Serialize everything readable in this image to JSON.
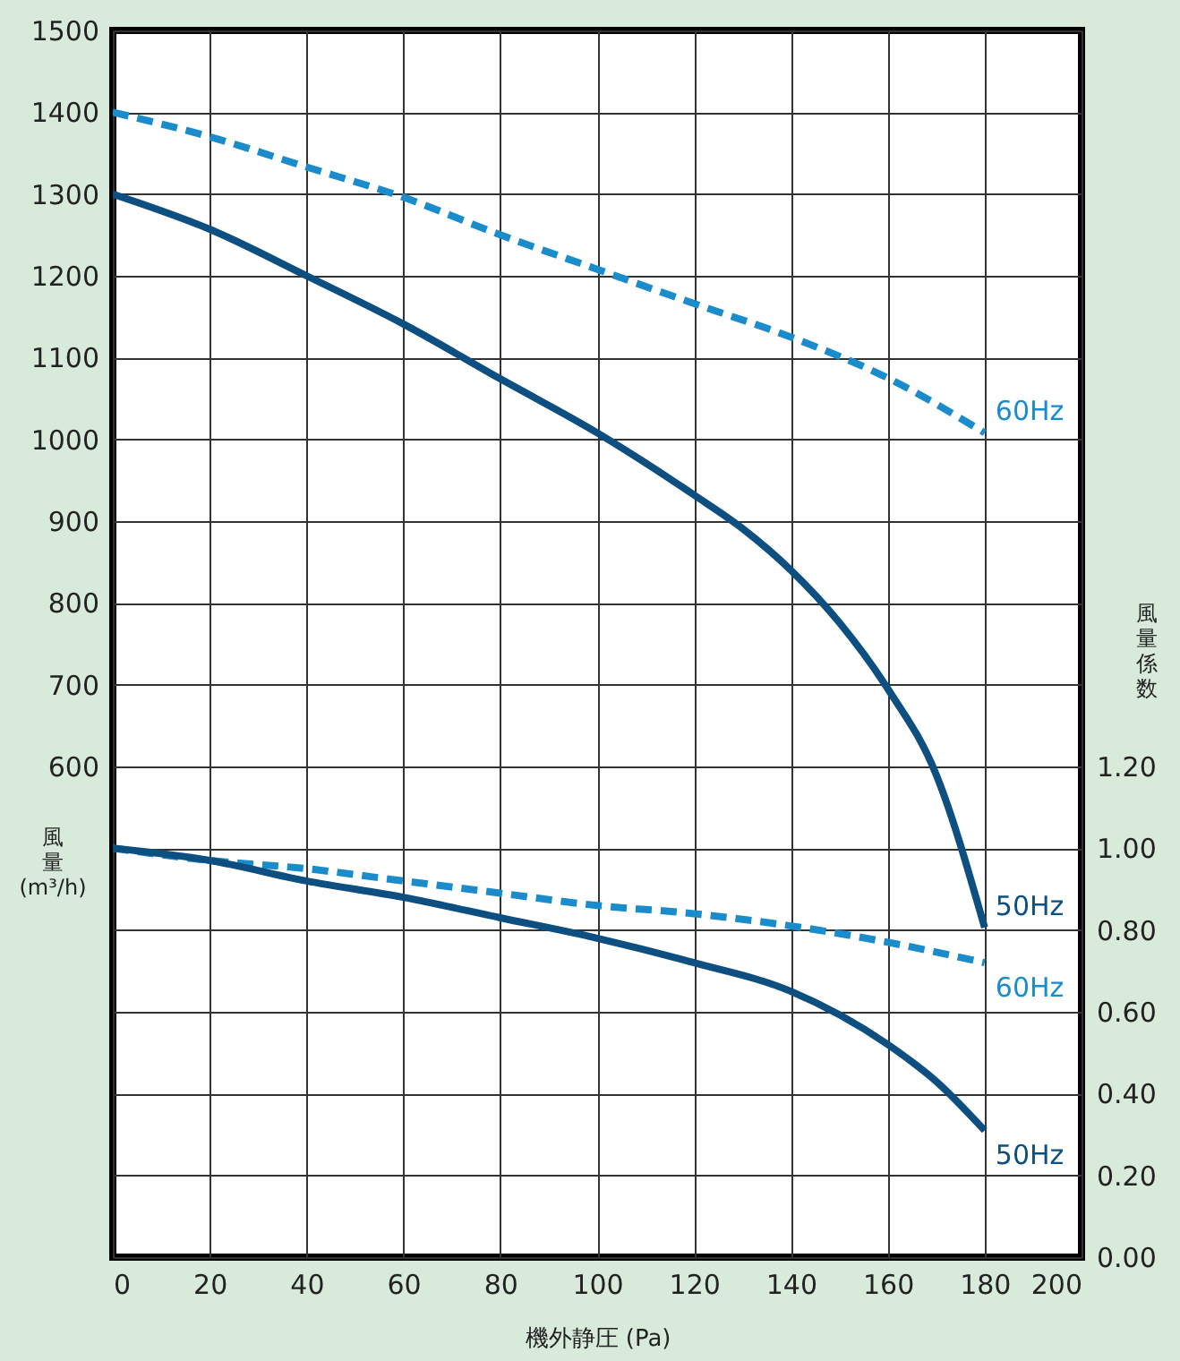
{
  "chart_data": {
    "type": "line",
    "xlabel": "機外静圧 (Pa)",
    "ylabel": "風量 (m³/h)",
    "y2label": "風量係数",
    "xlim": [
      0,
      200
    ],
    "xticks": [
      0,
      20,
      40,
      60,
      80,
      100,
      120,
      140,
      160,
      180,
      200
    ],
    "ylim": [
      0,
      1500
    ],
    "yticks": [
      {
        "value": 0,
        "label": null
      },
      {
        "value": 100,
        "label": null
      },
      {
        "value": 200,
        "label": null
      },
      {
        "value": 300,
        "label": null
      },
      {
        "value": 400,
        "label": null
      },
      {
        "value": 500,
        "label": null
      },
      600,
      700,
      800,
      900,
      1000,
      1100,
      1200,
      1300,
      1400,
      1500
    ],
    "y2lim": [
      0,
      3
    ],
    "y2ticks": [
      {
        "value": 0,
        "label": "0.00"
      },
      {
        "value": 0.2,
        "label": "0.20"
      },
      {
        "value": 0.4,
        "label": "0.40"
      },
      {
        "value": 0.6,
        "label": "0.60"
      },
      {
        "value": 0.8,
        "label": "0.80"
      },
      {
        "value": 1,
        "label": "1.00"
      },
      {
        "value": 1.2,
        "label": "1.20"
      }
    ],
    "grid": true,
    "series": [
      {
        "name": "60Hz",
        "color": "#1a8ccc",
        "line_style": "dashed",
        "x": [
          0,
          20,
          40,
          60,
          80,
          100,
          120,
          140,
          160,
          180
        ],
        "values": [
          1400,
          1370,
          1333,
          1296,
          1250,
          1208,
          1166,
          1125,
          1075,
          1008
        ]
      },
      {
        "name": "50Hz",
        "color": "#0d4f80",
        "line_style": "solid",
        "x": [
          0,
          20,
          40,
          60,
          80,
          100,
          120,
          130,
          140,
          150,
          160,
          170,
          180
        ],
        "values": [
          1300,
          1257,
          1200,
          1141,
          1074,
          1008,
          932,
          891,
          840,
          776,
          695,
          590,
          403
        ]
      },
      {
        "name": "60Hz",
        "color": "#1a8ccc",
        "line_style": "dashed",
        "axis": "y2",
        "x": [
          0,
          20,
          40,
          60,
          80,
          100,
          120,
          140,
          160,
          180
        ],
        "values": [
          1.0,
          0.97,
          0.95,
          0.92,
          0.89,
          0.86,
          0.84,
          0.81,
          0.77,
          0.72
        ]
      },
      {
        "name": "50Hz",
        "color": "#0d4f80",
        "line_style": "solid",
        "axis": "y2",
        "x": [
          0,
          20,
          40,
          60,
          80,
          100,
          120,
          140,
          160,
          170,
          180
        ],
        "values": [
          1.0,
          0.97,
          0.92,
          0.88,
          0.83,
          0.78,
          0.72,
          0.65,
          0.52,
          0.43,
          0.31
        ]
      }
    ]
  }
}
